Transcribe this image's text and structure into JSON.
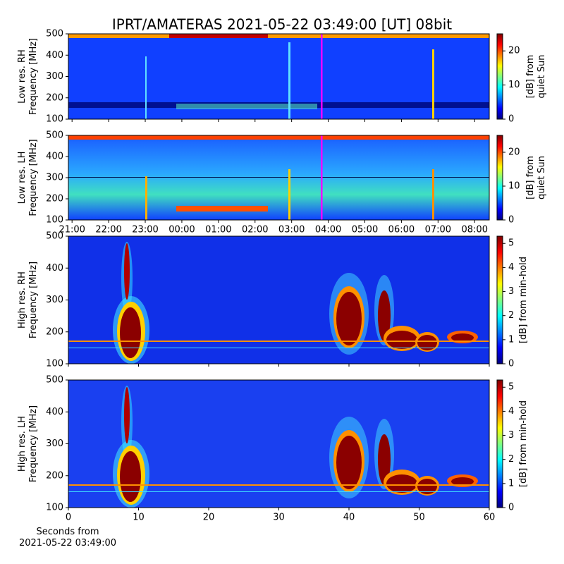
{
  "chart_data": [
    {
      "type": "heatmap",
      "title": "IPRT/AMATERAS 2021-05-22 03:49:00 [UT]   08bit",
      "ylabel": [
        "Low res. RH",
        "Frequency [MHz]"
      ],
      "ylim": [
        100,
        500
      ],
      "yticks": [
        100,
        200,
        300,
        400,
        500
      ],
      "xlim": [
        -0.1,
        11.4
      ],
      "marker_x": 6.82,
      "marker_color": "#ff00ff",
      "colorbar": {
        "label": [
          "[dB] from",
          "quiet Sun"
        ],
        "lim": [
          0,
          25
        ],
        "ticks": [
          0,
          10,
          20
        ]
      }
    },
    {
      "type": "heatmap",
      "ylabel": [
        "Low res. LH",
        "Frequency [MHz]"
      ],
      "ylim": [
        100,
        500
      ],
      "yticks": [
        100,
        200,
        300,
        400,
        500
      ],
      "xlim": [
        -0.1,
        11.4
      ],
      "marker_x": 6.82,
      "marker_color": "#ff00ff",
      "xticks": [
        {
          "value": 0,
          "label": "21:00"
        },
        {
          "value": 1,
          "label": "22:00"
        },
        {
          "value": 2,
          "label": "23:00"
        },
        {
          "value": 3,
          "label": "00:00"
        },
        {
          "value": 4,
          "label": "01:00"
        },
        {
          "value": 5,
          "label": "02:00"
        },
        {
          "value": 6,
          "label": "03:00"
        },
        {
          "value": 7,
          "label": "04:00"
        },
        {
          "value": 8,
          "label": "05:00"
        },
        {
          "value": 9,
          "label": "06:00"
        },
        {
          "value": 10,
          "label": "07:00"
        },
        {
          "value": 11,
          "label": "08:00"
        }
      ],
      "colorbar": {
        "label": [
          "[dB] from",
          "quiet Sun"
        ],
        "lim": [
          0,
          25
        ],
        "ticks": [
          0,
          10,
          20
        ]
      }
    },
    {
      "type": "heatmap",
      "ylabel": [
        "High res. RH",
        "Frequency [MHz]"
      ],
      "ylim": [
        100,
        500
      ],
      "yticks": [
        100,
        200,
        300,
        400,
        500
      ],
      "xlim": [
        0,
        60
      ],
      "colorbar": {
        "label": [
          "[dB] from min-hold"
        ],
        "lim": [
          0,
          5.3
        ],
        "ticks": [
          0,
          1,
          2,
          3,
          4,
          5
        ]
      }
    },
    {
      "type": "heatmap",
      "ylabel": [
        "High res. LH",
        "Frequency [MHz]"
      ],
      "ylim": [
        100,
        500
      ],
      "yticks": [
        100,
        200,
        300,
        400,
        500
      ],
      "xlim": [
        0,
        60
      ],
      "xticks": [
        0,
        10,
        20,
        30,
        40,
        50,
        60
      ],
      "xlabel": [
        "Seconds from",
        "2021-05-22 03:49:00"
      ],
      "colorbar": {
        "label": [
          "[dB] from min-hold"
        ],
        "lim": [
          0,
          5.3
        ],
        "ticks": [
          0,
          1,
          2,
          3,
          4,
          5
        ]
      }
    }
  ]
}
